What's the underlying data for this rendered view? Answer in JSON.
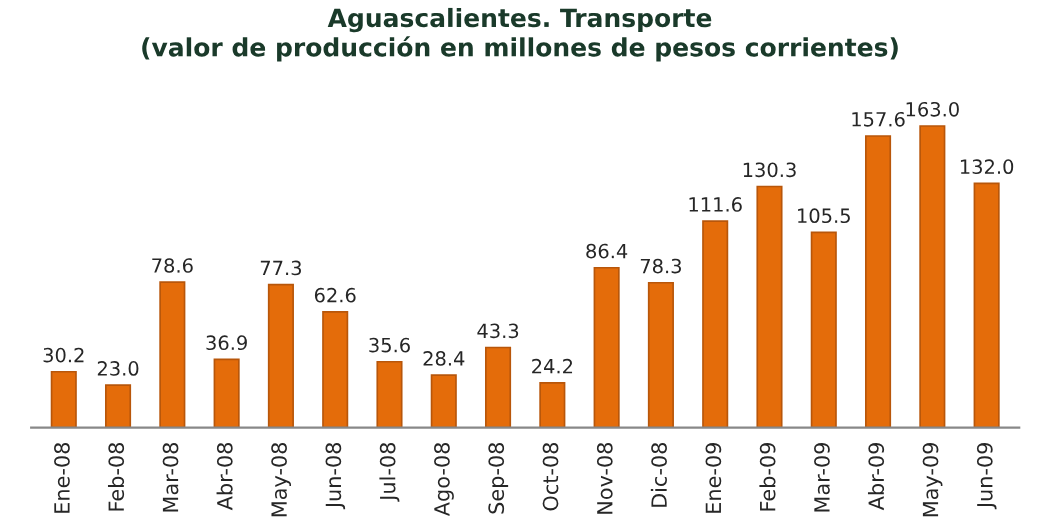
{
  "chart_data": {
    "type": "bar",
    "title": "Aguascalientes. Transporte\n(valor de producción en millones de pesos corrientes)",
    "categories": [
      "Ene-08",
      "Feb-08",
      "Mar-08",
      "Abr-08",
      "May-08",
      "Jun-08",
      "Jul-08",
      "Ago-08",
      "Sep-08",
      "Oct-08",
      "Nov-08",
      "Dic-08",
      "Ene-09",
      "Feb-09",
      "Mar-09",
      "Abr-09",
      "May-09",
      "Jun-09"
    ],
    "values": [
      30.2,
      23.0,
      78.6,
      36.9,
      77.3,
      62.6,
      35.6,
      28.4,
      43.3,
      24.2,
      86.4,
      78.3,
      111.6,
      130.3,
      105.5,
      157.6,
      163.0,
      132.0
    ],
    "color": "#e46c0a",
    "value_labels": [
      "30.2",
      "23.0",
      "78.6",
      "36.9",
      "77.3",
      "62.6",
      "35.6",
      "28.4",
      "43.3",
      "24.2",
      "86.4",
      "78.3",
      "111.6",
      "130.3",
      "105.5",
      "157.6",
      "163.0",
      "132.0"
    ],
    "grid": false,
    "legend": false
  }
}
